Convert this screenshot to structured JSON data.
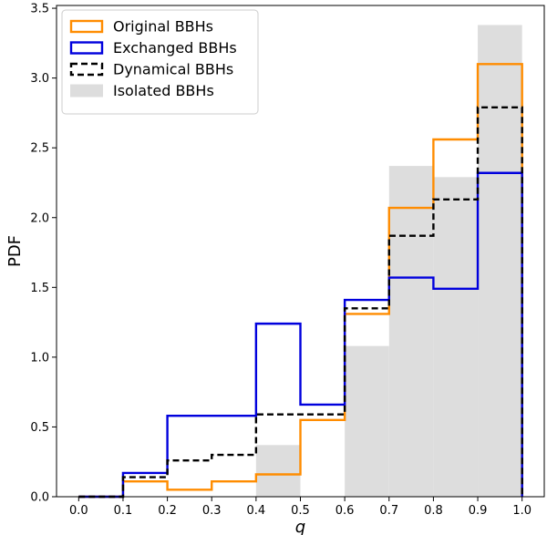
{
  "chart_data": {
    "type": "histogram",
    "xlabel": "q",
    "ylabel": "PDF",
    "xlim": [
      -0.05,
      1.05
    ],
    "ylim": [
      0.0,
      3.52
    ],
    "bin_edges": [
      0.0,
      0.1,
      0.2,
      0.3,
      0.4,
      0.5,
      0.6,
      0.7,
      0.8,
      0.9,
      1.0
    ],
    "x_ticks": [
      0.0,
      0.1,
      0.2,
      0.3,
      0.4,
      0.5,
      0.6,
      0.7,
      0.8,
      0.9,
      1.0
    ],
    "x_tick_labels": [
      "0.0",
      "0.1",
      "0.2",
      "0.3",
      "0.4",
      "0.5",
      "0.6",
      "0.7",
      "0.8",
      "0.9",
      "1.0"
    ],
    "y_ticks": [
      0.0,
      0.5,
      1.0,
      1.5,
      2.0,
      2.5,
      3.0,
      3.5
    ],
    "y_tick_labels": [
      "0.0",
      "0.5",
      "1.0",
      "1.5",
      "2.0",
      "2.5",
      "3.0",
      "3.5"
    ],
    "grid": false,
    "legend_position": "top-left",
    "series": [
      {
        "name": "Original BBHs",
        "style": "step",
        "color": "#ff8c00",
        "values": [
          0.0,
          0.11,
          0.05,
          0.11,
          0.16,
          0.55,
          1.31,
          2.07,
          2.56,
          3.1
        ]
      },
      {
        "name": "Exchanged BBHs",
        "style": "step",
        "color": "#0000dd",
        "values": [
          0.0,
          0.17,
          0.58,
          0.58,
          1.24,
          0.66,
          1.41,
          1.57,
          1.49,
          2.32
        ]
      },
      {
        "name": "Dynamical BBHs",
        "style": "step-dashed",
        "color": "#000000",
        "values": [
          0.0,
          0.14,
          0.26,
          0.3,
          0.59,
          0.59,
          1.35,
          1.87,
          2.13,
          2.79
        ]
      },
      {
        "name": "Isolated BBHs",
        "style": "filled",
        "color": "#dddddd",
        "values": [
          0.0,
          0.0,
          0.0,
          0.0,
          0.37,
          0.0,
          1.08,
          2.37,
          2.29,
          3.38
        ]
      }
    ]
  }
}
